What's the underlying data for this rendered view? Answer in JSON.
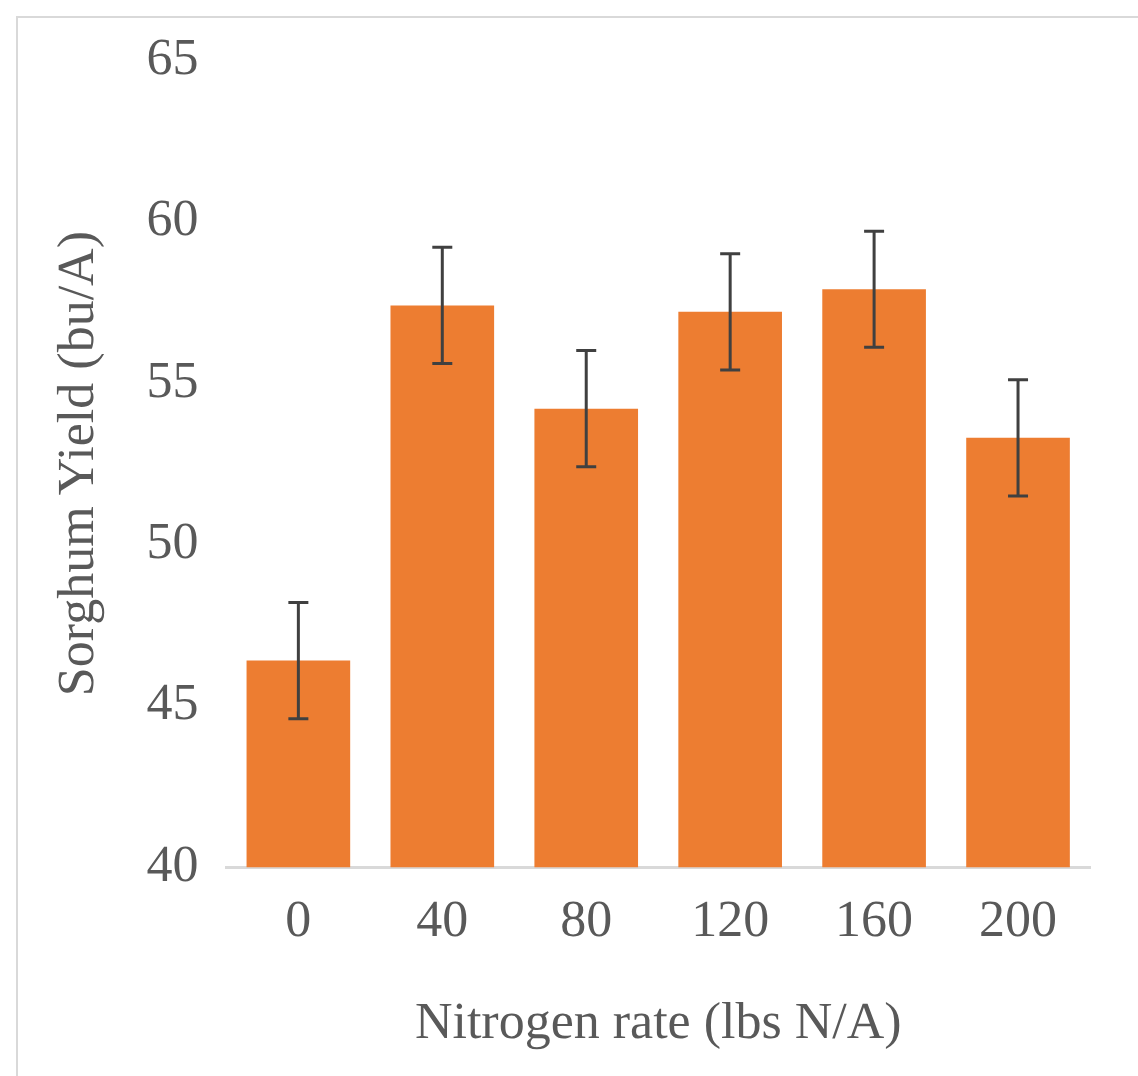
{
  "chart_data": {
    "type": "bar",
    "xlabel": "Nitrogen rate (lbs N/A)",
    "ylabel": "Sorghum Yield (bu/A)",
    "categories": [
      "0",
      "40",
      "80",
      "120",
      "160",
      "200"
    ],
    "values": [
      46.4,
      57.4,
      54.2,
      57.2,
      57.9,
      53.3
    ],
    "errors": [
      1.8,
      1.8,
      1.8,
      1.8,
      1.8,
      1.8
    ],
    "color": "#ed7d31",
    "ylim": [
      40,
      65
    ],
    "yticks": [
      40,
      45,
      50,
      55,
      60,
      65
    ],
    "grid": false,
    "legend": false
  }
}
